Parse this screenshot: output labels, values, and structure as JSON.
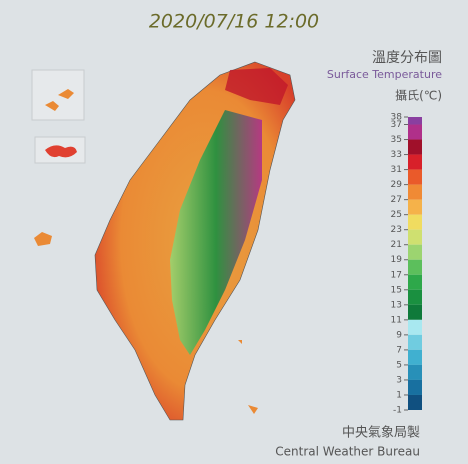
{
  "header": {
    "title": "2020/07/16 12:00"
  },
  "legend": {
    "title": "溫度分布圖",
    "subtitle": "Surface Temperature",
    "unit": "攝氏(℃)",
    "ticks": [
      38,
      37,
      35,
      33,
      31,
      29,
      27,
      25,
      23,
      21,
      19,
      17,
      15,
      13,
      11,
      9,
      7,
      5,
      3,
      1,
      -1
    ],
    "colors": [
      "#8a3fa0",
      "#b0308a",
      "#a0102a",
      "#d8202a",
      "#ea5a2a",
      "#f08a35",
      "#f5b24a",
      "#f0dc60",
      "#cfe070",
      "#9cd470",
      "#5cbf5c",
      "#2ea84a",
      "#1a9040",
      "#0f7a3a",
      "#a8e8f0",
      "#70cce0",
      "#40b0d0",
      "#2890b8",
      "#1870a0",
      "#105080"
    ]
  },
  "footer": {
    "agency": "中央氣象局製",
    "agency_en": "Central Weather Bureau"
  }
}
